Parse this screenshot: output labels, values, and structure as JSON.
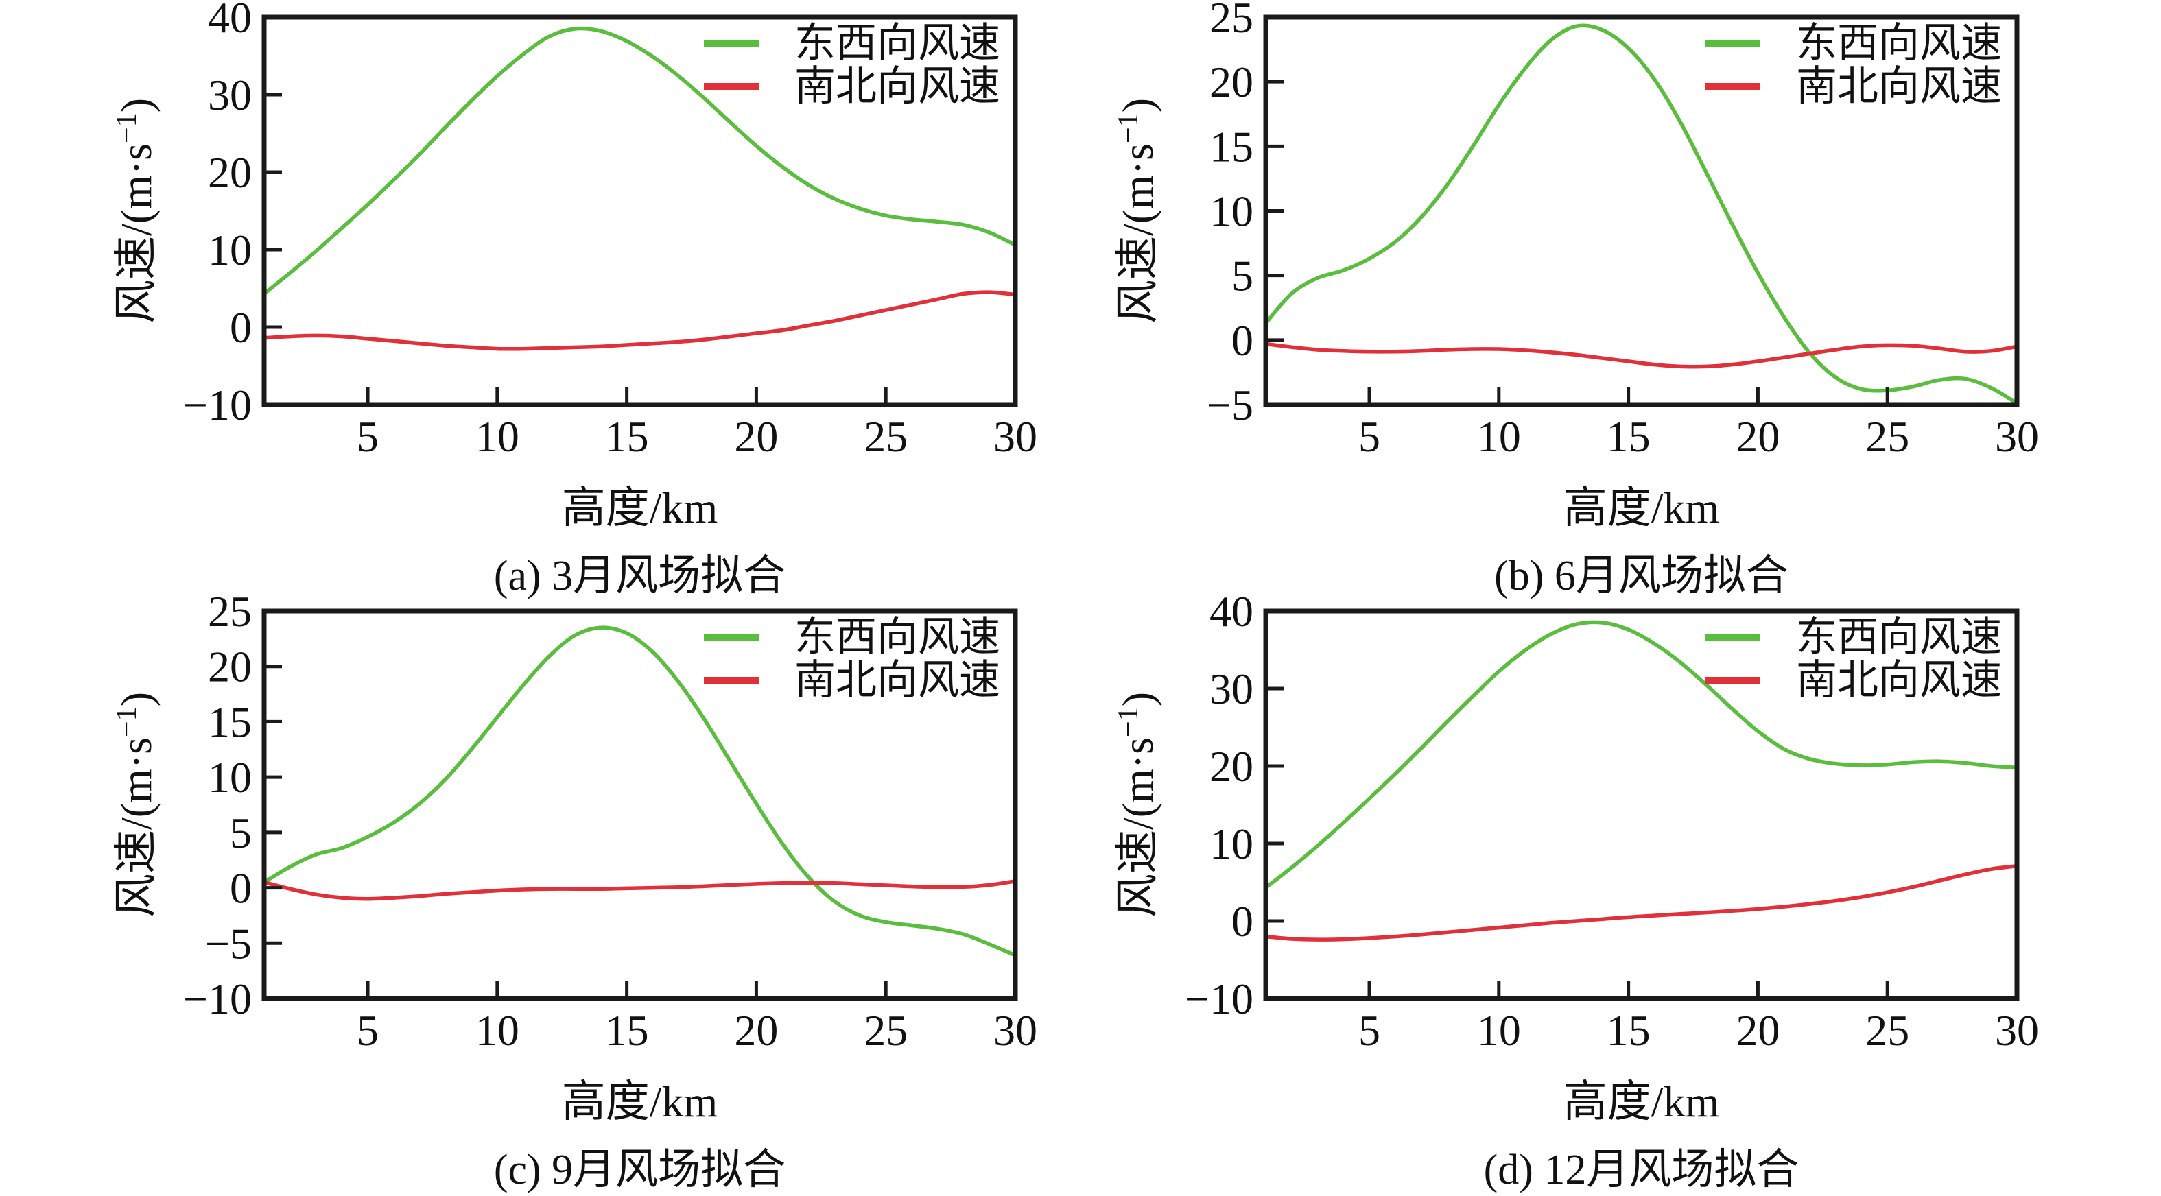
{
  "page": {
    "background": "#ffffff",
    "text_color": "#111111",
    "axis_color": "#1a1a1a"
  },
  "legend": {
    "entries": [
      {
        "label": "东西向风速",
        "color": "#5abd3e"
      },
      {
        "label": "南北向风速",
        "color": "#e0303a"
      }
    ],
    "position": "top-right"
  },
  "axis_titles": {
    "xlabel": "高度/km",
    "ylabel": "风速/(m·s⁻¹)",
    "ylabel_base": "风速/(m·s",
    "ylabel_sup": "−1",
    "ylabel_close": ")"
  },
  "chart_data": [
    {
      "id": "a",
      "type": "line",
      "caption": "(a) 3月风场拟合",
      "xlabel": "高度/km",
      "ylabel": "风速/(m·s⁻¹)",
      "xlim": [
        1,
        30
      ],
      "ylim": [
        -10,
        40
      ],
      "xticks": [
        5,
        10,
        15,
        20,
        25,
        30
      ],
      "yticks": [
        -10,
        0,
        10,
        20,
        30,
        40
      ],
      "grid": false,
      "legend_position": "top-right",
      "x": [
        1,
        2,
        3,
        4,
        5,
        6,
        7,
        8,
        9,
        10,
        11,
        12,
        13,
        14,
        15,
        16,
        17,
        18,
        19,
        20,
        21,
        22,
        23,
        24,
        25,
        26,
        27,
        28,
        29,
        30
      ],
      "series": [
        {
          "name": "东西向风速",
          "color": "#5abd3e",
          "values": [
            4.3,
            7.0,
            9.8,
            12.8,
            15.8,
            19.0,
            22.3,
            25.8,
            29.2,
            32.4,
            35.2,
            37.5,
            38.5,
            38.2,
            36.9,
            34.9,
            32.4,
            29.5,
            26.4,
            23.4,
            20.7,
            18.4,
            16.6,
            15.3,
            14.4,
            13.9,
            13.6,
            13.2,
            12.2,
            10.6
          ]
        },
        {
          "name": "南北向风速",
          "color": "#e0303a",
          "values": [
            -1.4,
            -1.2,
            -1.1,
            -1.2,
            -1.5,
            -1.8,
            -2.1,
            -2.4,
            -2.6,
            -2.8,
            -2.8,
            -2.7,
            -2.6,
            -2.5,
            -2.3,
            -2.1,
            -1.9,
            -1.6,
            -1.2,
            -0.8,
            -0.4,
            0.2,
            0.8,
            1.5,
            2.2,
            2.9,
            3.6,
            4.3,
            4.5,
            4.2
          ]
        }
      ]
    },
    {
      "id": "b",
      "type": "line",
      "caption": "(b) 6月风场拟合",
      "xlabel": "高度/km",
      "ylabel": "风速/(m·s⁻¹)",
      "xlim": [
        1,
        30
      ],
      "ylim": [
        -5,
        25
      ],
      "xticks": [
        5,
        10,
        15,
        20,
        25,
        30
      ],
      "yticks": [
        -5,
        0,
        5,
        10,
        15,
        20,
        25
      ],
      "grid": false,
      "legend_position": "top-right",
      "x": [
        1,
        2,
        3,
        4,
        5,
        6,
        7,
        8,
        9,
        10,
        11,
        12,
        13,
        14,
        15,
        16,
        17,
        18,
        19,
        20,
        21,
        22,
        23,
        24,
        25,
        26,
        27,
        28,
        29,
        30
      ],
      "series": [
        {
          "name": "东西向风速",
          "color": "#5abd3e",
          "values": [
            1.3,
            3.6,
            4.8,
            5.4,
            6.3,
            7.6,
            9.5,
            12.0,
            15.0,
            18.2,
            21.0,
            23.2,
            24.3,
            24.0,
            22.6,
            20.2,
            16.9,
            13.0,
            9.0,
            5.2,
            1.8,
            -1.0,
            -2.9,
            -3.8,
            -3.9,
            -3.6,
            -3.1,
            -3.0,
            -3.7,
            -4.9
          ]
        },
        {
          "name": "南北向风速",
          "color": "#e0303a",
          "values": [
            -0.3,
            -0.55,
            -0.75,
            -0.85,
            -0.9,
            -0.9,
            -0.85,
            -0.75,
            -0.7,
            -0.7,
            -0.8,
            -0.95,
            -1.15,
            -1.4,
            -1.65,
            -1.9,
            -2.05,
            -2.05,
            -1.9,
            -1.65,
            -1.35,
            -1.05,
            -0.75,
            -0.5,
            -0.4,
            -0.45,
            -0.65,
            -0.9,
            -0.85,
            -0.5
          ]
        }
      ]
    },
    {
      "id": "c",
      "type": "line",
      "caption": "(c) 9月风场拟合",
      "xlabel": "高度/km",
      "ylabel": "风速/(m·s⁻¹)",
      "xlim": [
        1,
        30
      ],
      "ylim": [
        -10,
        25
      ],
      "xticks": [
        5,
        10,
        15,
        20,
        25,
        30
      ],
      "yticks": [
        -10,
        -5,
        0,
        5,
        10,
        15,
        20,
        25
      ],
      "grid": false,
      "legend_position": "top-right",
      "x": [
        1,
        2,
        3,
        4,
        5,
        6,
        7,
        8,
        9,
        10,
        11,
        12,
        13,
        14,
        15,
        16,
        17,
        18,
        19,
        20,
        21,
        22,
        23,
        24,
        25,
        26,
        27,
        28,
        29,
        30
      ],
      "series": [
        {
          "name": "东西向风速",
          "color": "#5abd3e",
          "values": [
            0.5,
            1.9,
            3.0,
            3.6,
            4.6,
            5.9,
            7.6,
            9.8,
            12.5,
            15.4,
            18.3,
            20.9,
            22.8,
            23.5,
            23.0,
            21.3,
            18.6,
            15.2,
            11.4,
            7.6,
            4.0,
            1.0,
            -1.2,
            -2.5,
            -3.1,
            -3.4,
            -3.7,
            -4.2,
            -5.1,
            -6.1
          ]
        },
        {
          "name": "南北向风速",
          "color": "#e0303a",
          "values": [
            0.5,
            -0.1,
            -0.6,
            -0.9,
            -1.0,
            -0.9,
            -0.75,
            -0.55,
            -0.4,
            -0.25,
            -0.15,
            -0.1,
            -0.1,
            -0.1,
            -0.05,
            0.0,
            0.05,
            0.15,
            0.25,
            0.35,
            0.42,
            0.45,
            0.42,
            0.32,
            0.22,
            0.12,
            0.06,
            0.08,
            0.25,
            0.6
          ]
        }
      ]
    },
    {
      "id": "d",
      "type": "line",
      "caption": "(d) 12月风场拟合",
      "xlabel": "高度/km",
      "ylabel": "风速/(m·s⁻¹)",
      "xlim": [
        1,
        30
      ],
      "ylim": [
        -10,
        40
      ],
      "xticks": [
        5,
        10,
        15,
        20,
        25,
        30
      ],
      "yticks": [
        -10,
        0,
        10,
        20,
        30,
        40
      ],
      "grid": false,
      "legend_position": "top-right",
      "x": [
        1,
        2,
        3,
        4,
        5,
        6,
        7,
        8,
        9,
        10,
        11,
        12,
        13,
        14,
        15,
        16,
        17,
        18,
        19,
        20,
        21,
        22,
        23,
        24,
        25,
        26,
        27,
        28,
        29,
        30
      ],
      "series": [
        {
          "name": "东西向风速",
          "color": "#5abd3e",
          "values": [
            4.3,
            6.9,
            9.7,
            12.7,
            15.8,
            19.0,
            22.3,
            25.7,
            29.0,
            32.2,
            34.9,
            37.0,
            38.3,
            38.5,
            37.6,
            35.8,
            33.4,
            30.5,
            27.4,
            24.5,
            22.2,
            20.9,
            20.3,
            20.1,
            20.2,
            20.5,
            20.6,
            20.4,
            20.0,
            19.8
          ]
        },
        {
          "name": "南北向风速",
          "color": "#e0303a",
          "values": [
            -2.0,
            -2.3,
            -2.4,
            -2.35,
            -2.2,
            -2.0,
            -1.75,
            -1.45,
            -1.15,
            -0.85,
            -0.55,
            -0.25,
            0.0,
            0.25,
            0.5,
            0.7,
            0.9,
            1.1,
            1.3,
            1.55,
            1.85,
            2.2,
            2.6,
            3.1,
            3.7,
            4.4,
            5.2,
            6.0,
            6.7,
            7.1
          ]
        }
      ]
    }
  ]
}
